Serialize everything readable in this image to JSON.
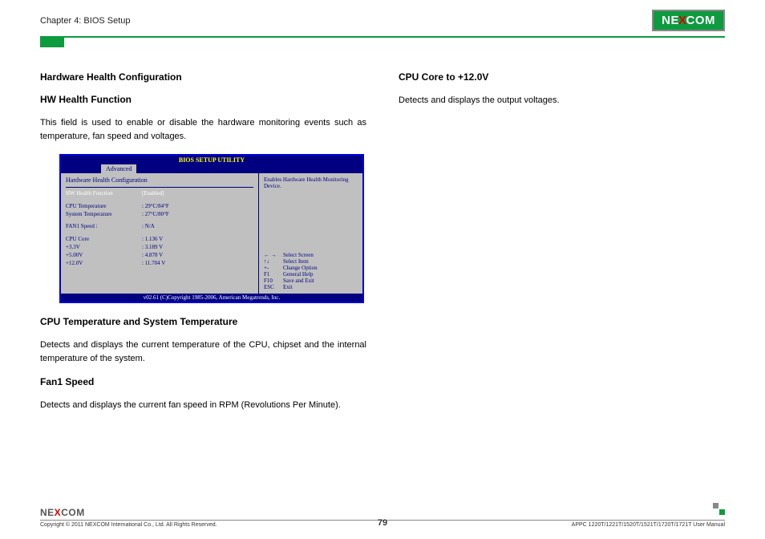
{
  "header": {
    "chapter": "Chapter 4: BIOS Setup",
    "logo_text_1": "NE",
    "logo_x": "X",
    "logo_text_2": "COM"
  },
  "left": {
    "h1": "Hardware Health Configuration",
    "h2": "HW Health Function",
    "p1": "This field is used to enable or disable the hardware monitoring events such as temperature, fan speed and voltages.",
    "h3": "CPU Temperature and System Temperature",
    "p2": "Detects and displays the current temperature of the CPU, chipset and the internal temperature of the system.",
    "h4": "Fan1 Speed",
    "p3": "Detects and displays the current fan speed in RPM (Revolutions Per Minute)."
  },
  "right": {
    "h1": "CPU Core to +12.0V",
    "p1": "Detects and displays the output voltages."
  },
  "bios": {
    "title": "BIOS SETUP UTILITY",
    "tab": "Advanced",
    "section": "Hardware Health Configuration",
    "selected_key": "HW Health Function",
    "selected_val": "[Enabled]",
    "rows": [
      {
        "k": "CPU Temperature",
        "v": ": 29°C/84°F"
      },
      {
        "k": "System Temperature",
        "v": ": 27°C/80°F"
      }
    ],
    "rows2": [
      {
        "k": "FAN1 Speed         :",
        "v": ": N/A"
      }
    ],
    "rows3": [
      {
        "k": "CPU Core",
        "v": ": 1.136 V"
      },
      {
        "k": "+3.3V",
        "v": ": 3.189 V"
      },
      {
        "k": "+5.00V",
        "v": ": 4.878 V"
      },
      {
        "k": "+12.0V",
        "v": ": 11.704 V"
      }
    ],
    "help": "Enables Hardware Health Monitoring Device.",
    "nav": [
      {
        "k": "← →",
        "v": "Select Screen"
      },
      {
        "k": "↑↓",
        "v": "Select Item"
      },
      {
        "k": "+-",
        "v": "Change Option"
      },
      {
        "k": "F1",
        "v": "General Help"
      },
      {
        "k": "F10",
        "v": "Save and Exit"
      },
      {
        "k": "ESC",
        "v": "Exit"
      }
    ],
    "footer": "v02.61 (C)Copyright 1985-2006, American Megatrends, Inc."
  },
  "footer": {
    "copyright": "Copyright © 2011 NEXCOM International Co., Ltd. All Rights Reserved.",
    "page": "79",
    "manual": "APPC 1220T/1221T/1520T/1521T/1720T/1721T User Manual",
    "logo_1": "NE",
    "logo_x": "X",
    "logo_2": "COM"
  }
}
